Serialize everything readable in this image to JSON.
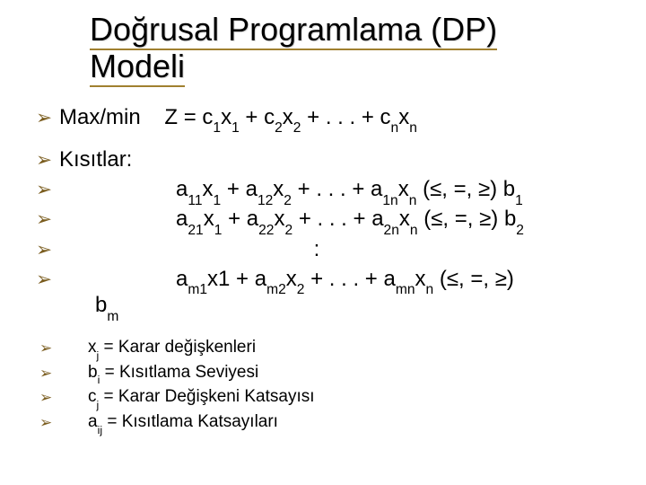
{
  "colors": {
    "bg": "#ffffff",
    "text": "#000000",
    "bullet": "#7a5c1e",
    "underline": "#a08030"
  },
  "typography": {
    "title_fontsize": 36,
    "body_fontsize": 24,
    "small_fontsize": 19,
    "font_family": "Arial"
  },
  "title_line1": "Doğrusal Programlama (DP)",
  "title_line2": "Modeli",
  "objective_label": "Max/min",
  "objective_gap": "    ",
  "objective_expr": "Z = c<sub>1</sub>x<sub>1</sub> + c<sub>2</sub>x<sub>2</sub> + . . . + c<sub>n</sub>x<sub>n</sub>",
  "constraints_label": "Kısıtlar:",
  "constraint_1": "a<sub>11</sub>x<sub>1</sub> + a<sub>12</sub>x<sub>2</sub> + . . . + a<sub>1n</sub>x<sub>n</sub> (≤, =, ≥) b<sub>1</sub>",
  "constraint_2": "a<sub>21</sub>x<sub>1</sub> + a<sub>22</sub>x<sub>2</sub> + . . . + a<sub>2n</sub>x<sub>n</sub> (≤, =, ≥) b<sub>2</sub>",
  "constraint_ellipsis": ":",
  "constraint_m_eq": "a<sub>m1</sub>x1 + a<sub>m2</sub>x<sub>2</sub> + . . . + a<sub>mn</sub>x<sub>n</sub> (≤, =, ≥)",
  "constraint_m_b": "b<sub>m</sub>",
  "defs": [
    "x<sub>j</sub> = Karar değişkenleri",
    "b<sub>i</sub> = Kısıtlama Seviyesi",
    "c<sub>j</sub> = Karar Değişkeni Katsayısı",
    "a<sub>ij</sub> = Kısıtlama Katsayıları"
  ],
  "bullet_glyph": "➢"
}
